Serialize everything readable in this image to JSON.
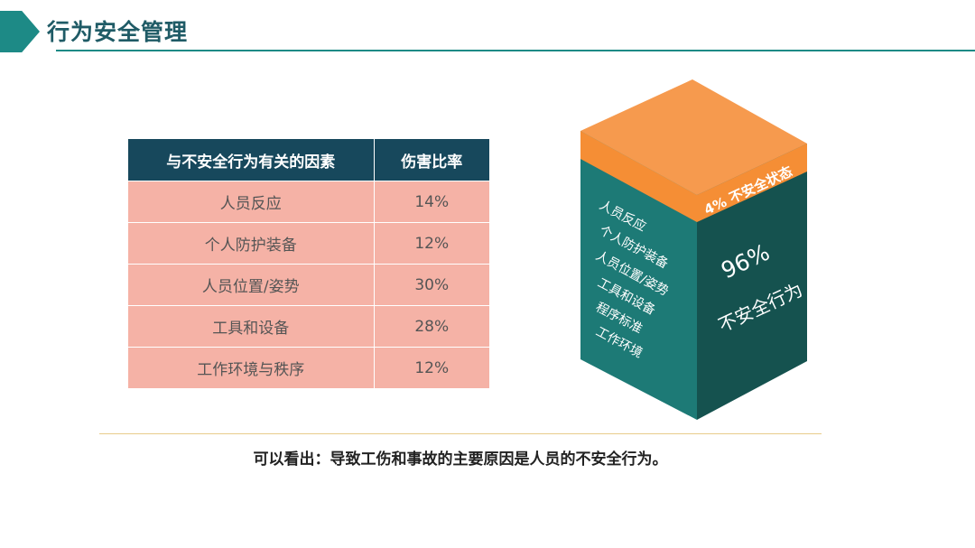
{
  "header": {
    "title": "行为安全管理"
  },
  "table": {
    "headers": [
      "与不安全行为有关的因素",
      "伤害比率"
    ],
    "rows": [
      {
        "factor": "人员反应",
        "rate": "14%"
      },
      {
        "factor": "个人防护装备",
        "rate": "12%"
      },
      {
        "factor": "人员位置/姿势",
        "rate": "30%"
      },
      {
        "factor": "工具和设备",
        "rate": "28%"
      },
      {
        "factor": "工作环境与秩序",
        "rate": "12%"
      }
    ]
  },
  "cube": {
    "top_label": "4% 不安全状态",
    "left_items": [
      "人员反应",
      "个人防护装备",
      "人员位置/姿势",
      "工具和设备",
      "程序标准",
      "工作环境"
    ],
    "right_percent": "96%",
    "right_label": "不安全行为",
    "colors": {
      "top": "#f69a4e",
      "top_band": "#f58e35",
      "left_face": "#1d7a76",
      "right_face": "#15524f"
    }
  },
  "conclusion": "可以看出：导致工伤和事故的主要原因是人员的不安全行为。",
  "colors": {
    "accent": "#1d8a86",
    "table_header": "#17485c",
    "table_cell": "#f5b2a6"
  }
}
